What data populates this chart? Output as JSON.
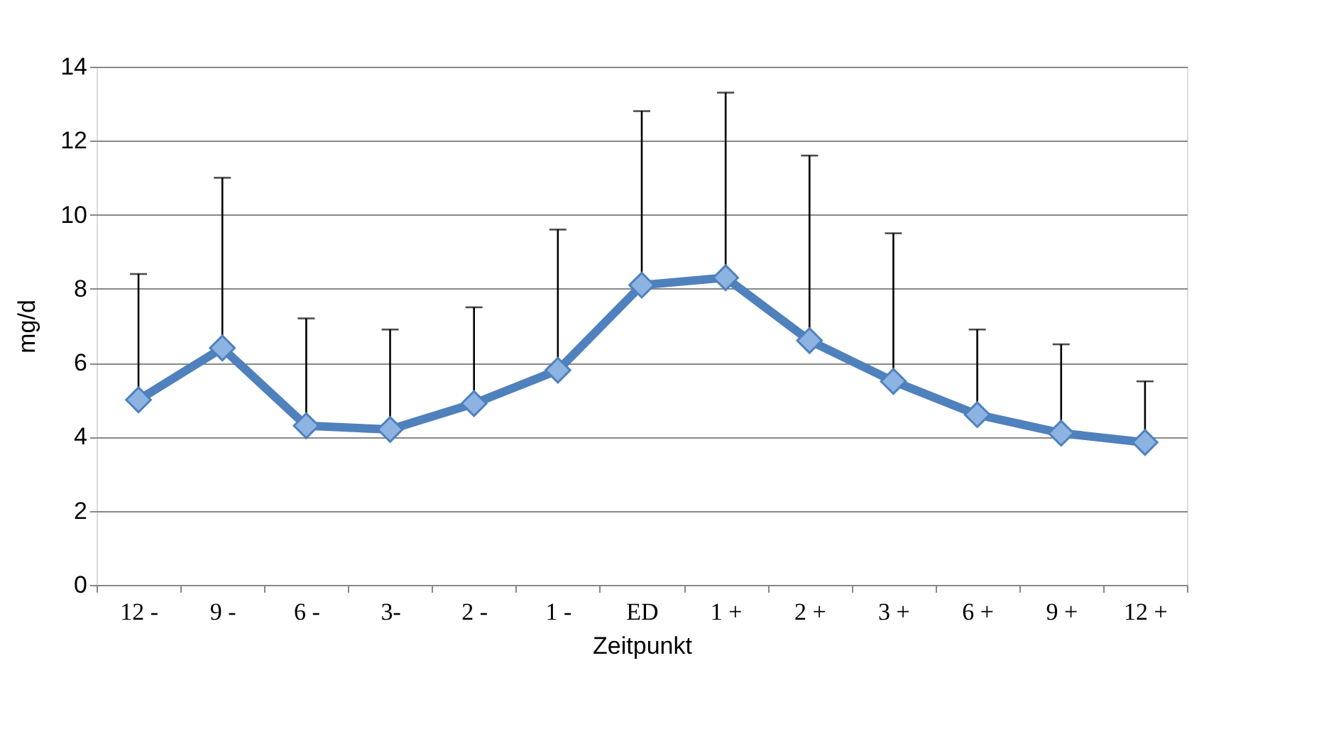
{
  "chart_data": {
    "type": "line",
    "xlabel": "Zeitpunkt",
    "ylabel": "mg/d",
    "categories": [
      "12 -",
      "9 -",
      "6 -",
      "3-",
      "2 -",
      "1 -",
      "ED",
      "1 +",
      "2 +",
      "3 +",
      "6 +",
      "9 +",
      "12 +"
    ],
    "series": [
      {
        "color": "#4f81bd",
        "values": [
          5.0,
          6.4,
          4.3,
          4.2,
          4.9,
          5.8,
          8.1,
          8.3,
          6.6,
          5.5,
          4.6,
          4.1,
          3.85
        ],
        "errors": [
          [
            5.0,
            8.4
          ],
          [
            6.4,
            11.0
          ],
          [
            4.3,
            7.2
          ],
          [
            4.2,
            6.9
          ],
          [
            4.9,
            7.5
          ],
          [
            5.8,
            9.6
          ],
          [
            8.1,
            12.8
          ],
          [
            8.3,
            13.3
          ],
          [
            6.6,
            11.6
          ],
          [
            5.5,
            9.5
          ],
          [
            4.6,
            6.9
          ],
          [
            4.1,
            6.5
          ],
          [
            3.85,
            5.5
          ]
        ]
      }
    ],
    "ylim": [
      0,
      14
    ],
    "yticks": [
      0,
      2,
      4,
      6,
      8,
      10,
      12,
      14
    ],
    "grid": "y",
    "marker": "diamond",
    "line_style": "solid"
  }
}
